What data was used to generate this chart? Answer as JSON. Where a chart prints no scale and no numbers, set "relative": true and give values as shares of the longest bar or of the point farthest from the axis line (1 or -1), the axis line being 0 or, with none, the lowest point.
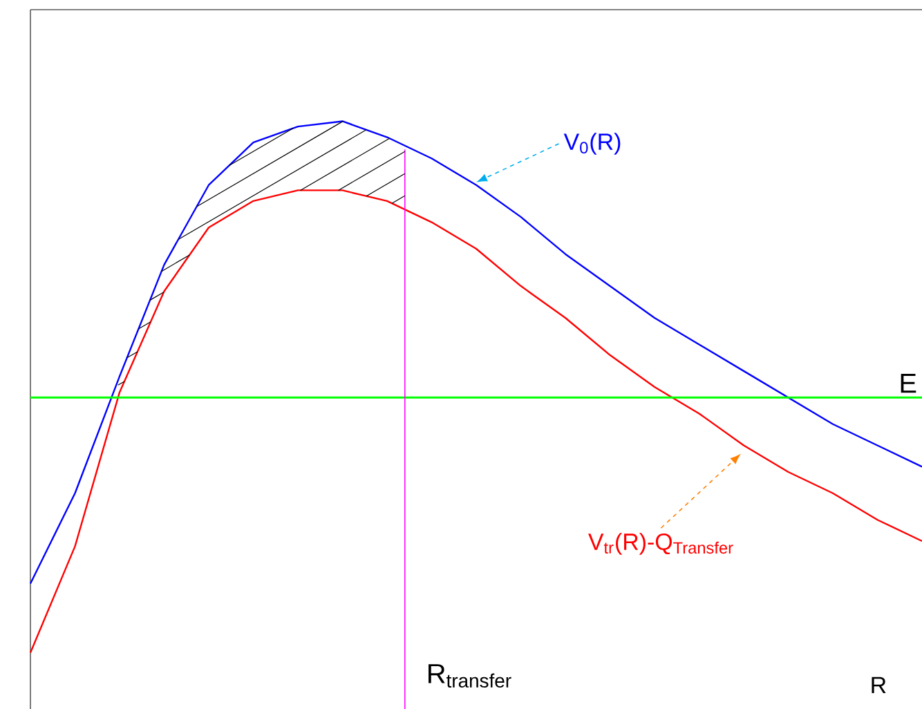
{
  "chart_data": {
    "type": "line",
    "relative": true,
    "xlabel": "R",
    "categories": [
      null,
      null,
      null,
      null,
      null,
      null,
      null,
      null,
      null,
      null,
      null,
      null,
      null,
      null,
      null,
      null,
      null,
      null,
      null,
      null,
      null
    ],
    "series": [
      {
        "name": "V$_{0}$(R)",
        "color": "#0000ff",
        "values": [
          0.13,
          0.3,
          0.52,
          0.73,
          0.88,
          0.96,
          0.99,
          1.0,
          0.97,
          0.93,
          0.88,
          0.82,
          0.75,
          0.69,
          0.63,
          0.58,
          0.53,
          0.48,
          0.43,
          0.39,
          0.35
        ]
      },
      {
        "name": "V$_{tr}$(R)-Q$_{Transfer}$",
        "color": "#ff0000",
        "values": [
          0,
          0.2,
          0.49,
          0.68,
          0.8,
          0.85,
          0.87,
          0.87,
          0.85,
          0.81,
          0.76,
          0.69,
          0.63,
          0.56,
          0.5,
          0.45,
          0.39,
          0.34,
          0.3,
          0.25,
          0.21
        ]
      }
    ],
    "ref_lines": [
      {
        "axis": "y",
        "value": 0.48,
        "label": "E",
        "color": "#00ff00"
      },
      {
        "axis": "x",
        "label": "R$_{transfer}$",
        "color": "#ff00ff"
      }
    ],
    "marker": "none",
    "line_style": "solid"
  }
}
